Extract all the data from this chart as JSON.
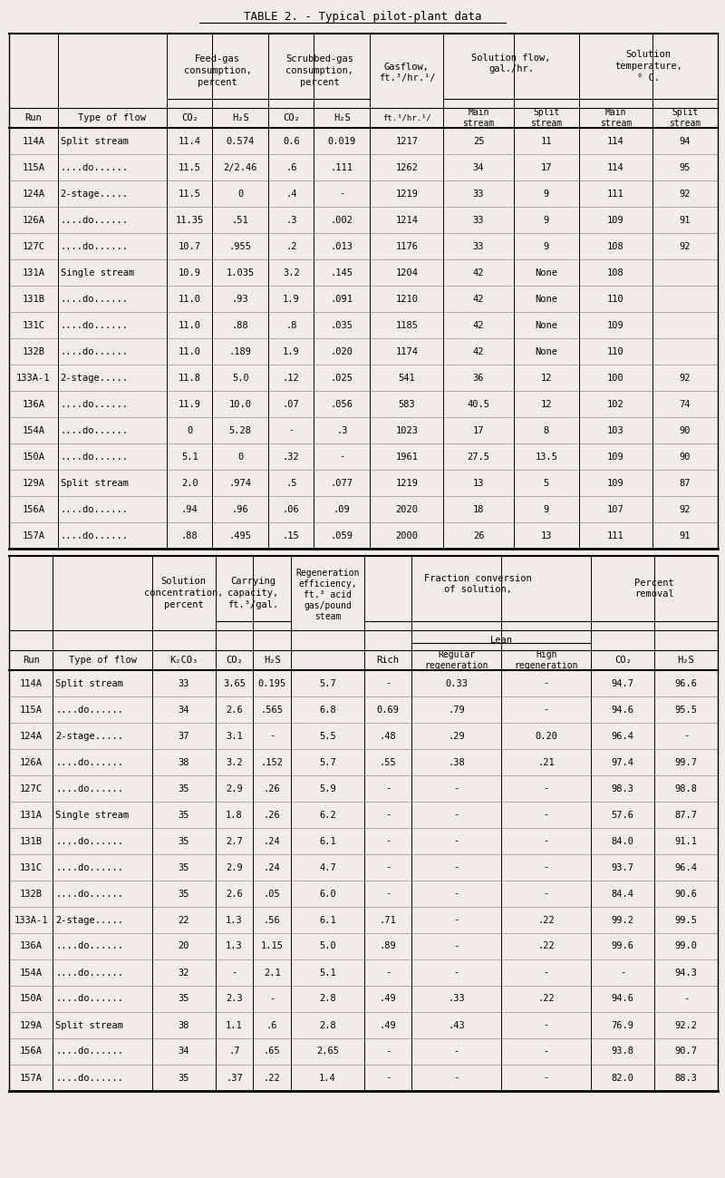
{
  "title": "TABLE 2. - Typical pilot-plant data",
  "bg_color": "#f0ede8",
  "table1": {
    "data": [
      [
        "114A",
        "Split stream",
        "11.4",
        "0.574",
        "0.6",
        "0.019",
        "1217",
        "25",
        "11",
        "114",
        "94"
      ],
      [
        "115A",
        "....do......",
        "11.5",
        "2/2.46",
        ".6",
        ".111",
        "1262",
        "34",
        "17",
        "114",
        "95"
      ],
      [
        "124A",
        "2-stage.....",
        "11.5",
        "0",
        ".4",
        "-",
        "1219",
        "33",
        "9",
        "111",
        "92"
      ],
      [
        "126A",
        "....do......",
        "11.35",
        ".51",
        ".3",
        ".002",
        "1214",
        "33",
        "9",
        "109",
        "91"
      ],
      [
        "127C",
        "....do......",
        "10.7",
        ".955",
        ".2",
        ".013",
        "1176",
        "33",
        "9",
        "108",
        "92"
      ],
      [
        "131A",
        "Single stream",
        "10.9",
        "1.035",
        "3.2",
        ".145",
        "1204",
        "42",
        "None",
        "108",
        ""
      ],
      [
        "131B",
        "....do......",
        "11.0",
        ".93",
        "1.9",
        ".091",
        "1210",
        "42",
        "None",
        "110",
        ""
      ],
      [
        "131C",
        "....do......",
        "11.0",
        ".88",
        ".8",
        ".035",
        "1185",
        "42",
        "None",
        "109",
        ""
      ],
      [
        "132B",
        "....do......",
        "11.0",
        ".189",
        "1.9",
        ".020",
        "1174",
        "42",
        "None",
        "110",
        ""
      ],
      [
        "133A-1",
        "2-stage.....",
        "11.8",
        "5.0",
        ".12",
        ".025",
        "541",
        "36",
        "12",
        "100",
        "92"
      ],
      [
        "136A",
        "....do......",
        "11.9",
        "10.0",
        ".07",
        ".056",
        "583",
        "40.5",
        "12",
        "102",
        "74"
      ],
      [
        "154A",
        "....do......",
        "0",
        "5.28",
        "-",
        ".3",
        "1023",
        "17",
        "8",
        "103",
        "90"
      ],
      [
        "150A",
        "....do......",
        "5.1",
        "0",
        ".32",
        "-",
        "1961",
        "27.5",
        "13.5",
        "109",
        "90"
      ],
      [
        "129A",
        "Split stream",
        "2.0",
        ".974",
        ".5",
        ".077",
        "1219",
        "13",
        "5",
        "109",
        "87"
      ],
      [
        "156A",
        "....do......",
        ".94",
        ".96",
        ".06",
        ".09",
        "2020",
        "18",
        "9",
        "107",
        "92"
      ],
      [
        "157A",
        "....do......",
        ".88",
        ".495",
        ".15",
        ".059",
        "2000",
        "26",
        "13",
        "111",
        "91"
      ]
    ]
  },
  "table2": {
    "data": [
      [
        "114A",
        "Split stream",
        "33",
        "3.65",
        "0.195",
        "5.7",
        "-",
        "0.33",
        "-",
        "94.7",
        "96.6"
      ],
      [
        "115A",
        "....do......",
        "34",
        "2.6",
        ".565",
        "6.8",
        "0.69",
        ".79",
        "-",
        "94.6",
        "95.5"
      ],
      [
        "124A",
        "2-stage.....",
        "37",
        "3.1",
        "-",
        "5.5",
        ".48",
        ".29",
        "0.20",
        "96.4",
        "-"
      ],
      [
        "126A",
        "....do......",
        "38",
        "3.2",
        ".152",
        "5.7",
        ".55",
        ".38",
        ".21",
        "97.4",
        "99.7"
      ],
      [
        "127C",
        "....do......",
        "35",
        "2.9",
        ".26",
        "5.9",
        "-",
        "-",
        "-",
        "98.3",
        "98.8"
      ],
      [
        "131A",
        "Single stream",
        "35",
        "1.8",
        ".26",
        "6.2",
        "-",
        "-",
        "-",
        "57.6",
        "87.7"
      ],
      [
        "131B",
        "....do......",
        "35",
        "2.7",
        ".24",
        "6.1",
        "-",
        "-",
        "-",
        "84.0",
        "91.1"
      ],
      [
        "131C",
        "....do......",
        "35",
        "2.9",
        ".24",
        "4.7",
        "-",
        "-",
        "-",
        "93.7",
        "96.4"
      ],
      [
        "132B",
        "....do......",
        "35",
        "2.6",
        ".05",
        "6.0",
        "-",
        "-",
        "-",
        "84.4",
        "90.6"
      ],
      [
        "133A-1",
        "2-stage.....",
        "22",
        "1.3",
        ".56",
        "6.1",
        ".71",
        "-",
        ".22",
        "99.2",
        "99.5"
      ],
      [
        "136A",
        "....do......",
        "20",
        "1.3",
        "1.15",
        "5.0",
        ".89",
        "-",
        ".22",
        "99.6",
        "99.0"
      ],
      [
        "154A",
        "....do......",
        "32",
        "-",
        "2.1",
        "5.1",
        "-",
        "-",
        "-",
        "-",
        "94.3"
      ],
      [
        "150A",
        "....do......",
        "35",
        "2.3",
        "-",
        "2.8",
        ".49",
        ".33",
        ".22",
        "94.6",
        "-"
      ],
      [
        "129A",
        "Split stream",
        "38",
        "1.1",
        ".6",
        "2.8",
        ".49",
        ".43",
        "-",
        "76.9",
        "92.2"
      ],
      [
        "156A",
        "....do......",
        "34",
        ".7",
        ".65",
        "2.65",
        "-",
        "-",
        "-",
        "93.8",
        "90.7"
      ],
      [
        "157A",
        "....do......",
        "35",
        ".37",
        ".22",
        "1.4",
        "-",
        "-",
        "-",
        "82.0",
        "88.3"
      ]
    ]
  }
}
